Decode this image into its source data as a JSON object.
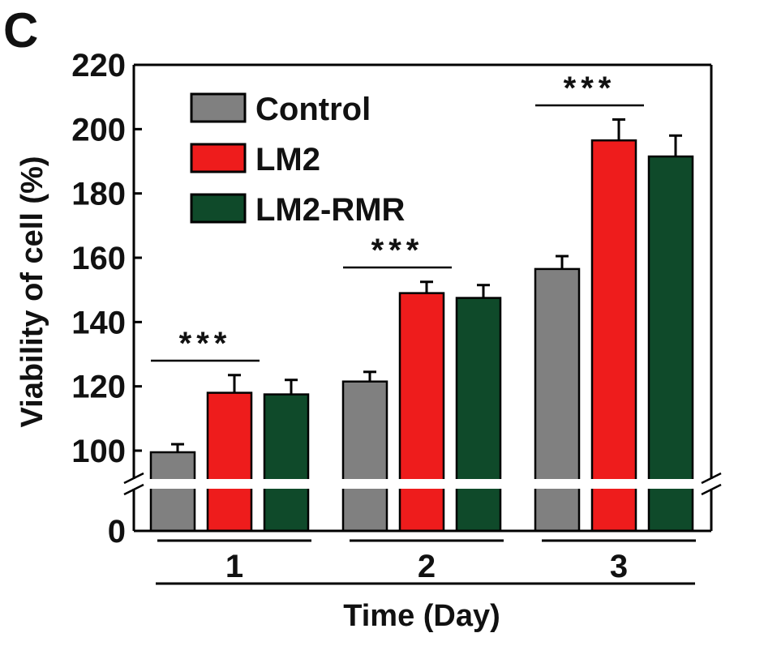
{
  "panel_label": "C",
  "chart_data": {
    "type": "bar",
    "title": "",
    "xlabel": "Time (Day)",
    "ylabel": "Viability of cell (%)",
    "categories": [
      "1",
      "2",
      "3"
    ],
    "ylim": [
      0,
      220
    ],
    "axis_break": {
      "from": 0,
      "to": 90
    },
    "yticks": [
      "0",
      "100",
      "120",
      "140",
      "160",
      "180",
      "200",
      "220"
    ],
    "legend_position": "top-left",
    "series": [
      {
        "name": "Control",
        "color": "#808080",
        "values": [
          99.5,
          121.5,
          156.5
        ],
        "errors": [
          2.5,
          3.0,
          4.0
        ]
      },
      {
        "name": "LM2",
        "color": "#ee1c1c",
        "values": [
          118,
          149,
          196.5
        ],
        "errors": [
          5.5,
          3.5,
          6.5
        ]
      },
      {
        "name": "LM2-RMR",
        "color": "#0f4a2a",
        "values": [
          117.5,
          147.5,
          191.5
        ],
        "errors": [
          4.5,
          4.0,
          6.5
        ]
      }
    ],
    "significance": [
      {
        "category": "1",
        "label": "***"
      },
      {
        "category": "2",
        "label": "***"
      },
      {
        "category": "3",
        "label": "***"
      }
    ]
  }
}
